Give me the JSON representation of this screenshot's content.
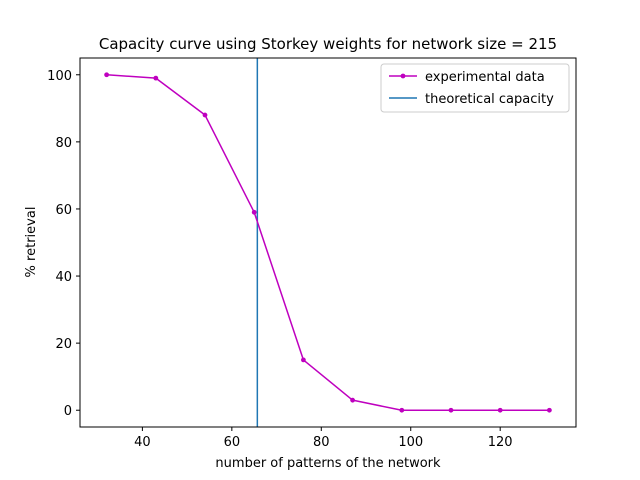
{
  "chart_data": {
    "type": "line",
    "title": "Capacity curve using Storkey weights for network size = 215",
    "xlabel": "number of patterns of the network",
    "ylabel": "% retrieval",
    "xlim": [
      26.05,
      136.95
    ],
    "ylim": [
      -5,
      105
    ],
    "xticks": [
      40,
      60,
      80,
      100,
      120
    ],
    "yticks": [
      0,
      20,
      40,
      60,
      80,
      100
    ],
    "xtick_labels": [
      "40",
      "60",
      "80",
      "100",
      "120"
    ],
    "ytick_labels": [
      "0",
      "20",
      "40",
      "60",
      "80",
      "100"
    ],
    "grid": false,
    "legend_position": "top-right",
    "series": [
      {
        "name": "experimental data",
        "color": "#bf00bf",
        "marker": "circle",
        "x": [
          32,
          43,
          54,
          65,
          76,
          87,
          98,
          109,
          120,
          131
        ],
        "y": [
          100,
          99,
          88,
          59,
          15,
          3,
          0,
          0,
          0,
          0
        ]
      }
    ],
    "vlines": [
      {
        "name": "theoretical capacity",
        "color": "#1f77b4",
        "x": 65.7
      }
    ]
  }
}
